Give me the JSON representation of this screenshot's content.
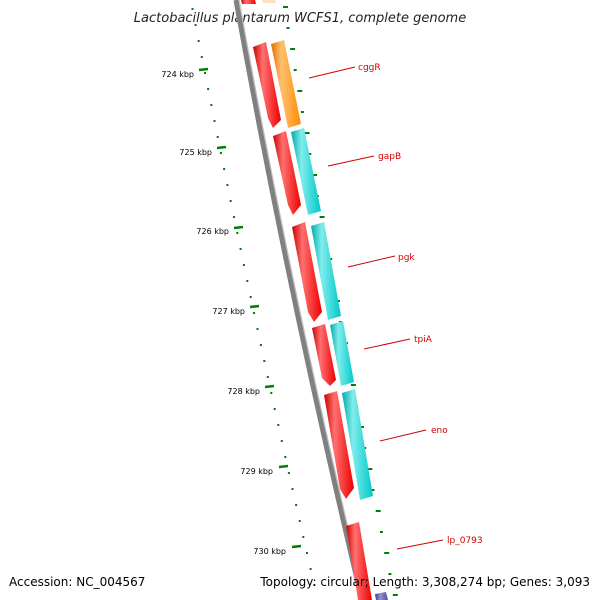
{
  "title": "Lactobacillus plantarum WCFS1, complete genome",
  "accession": "Accession: NC_004567",
  "summary": "Topology: circular; Length: 3,308,274 bp; Genes: 3,093",
  "ruler": [
    "724 kbp",
    "725 kbp",
    "726 kbp",
    "727 kbp",
    "728 kbp",
    "729 kbp",
    "730 kbp"
  ],
  "genes": [
    {
      "label": "cggR"
    },
    {
      "label": "gapB"
    },
    {
      "label": "pgk"
    },
    {
      "label": "tpiA"
    },
    {
      "label": "eno"
    },
    {
      "label": "lp_0793"
    }
  ],
  "colors": {
    "cds": "#ff0000",
    "cds_highlight": "#ff8080",
    "cggR": "#ff8c00",
    "cluster": "#00c8c8",
    "backbone": "#808080",
    "gc_ticks": "#008000",
    "label": "#d40000",
    "extra": "#5050a0"
  }
}
